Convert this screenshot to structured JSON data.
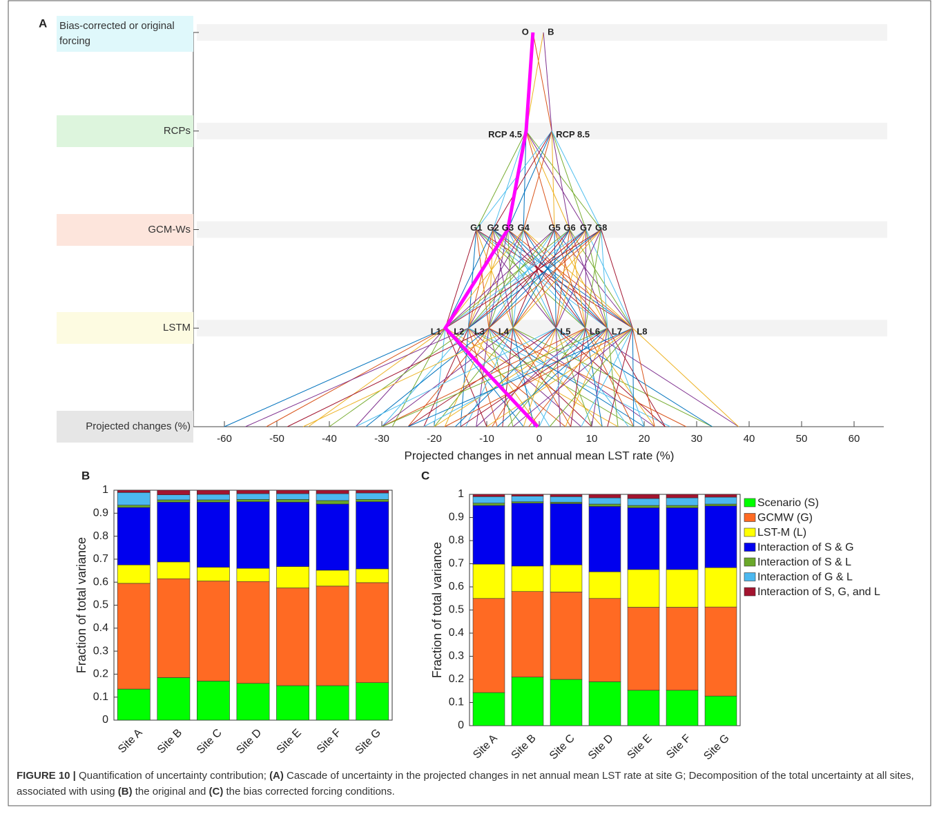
{
  "chart_data": [
    {
      "type": "cascade",
      "panel_label": "A",
      "xlabel": "Projected changes in net annual mean LST rate (%)",
      "xlim": [
        -66,
        66
      ],
      "xticks": [
        -60,
        -50,
        -40,
        -30,
        -20,
        -10,
        0,
        10,
        20,
        30,
        40,
        50,
        60
      ],
      "levels": [
        {
          "label": "Bias-corrected or original forcing",
          "color": "#dff8fb",
          "nodes": [
            {
              "name": "O",
              "value": -1.2
            },
            {
              "name": "B",
              "value": 0.8
            }
          ]
        },
        {
          "label": "RCPs",
          "color": "#ddf5dd",
          "nodes": [
            {
              "name": "RCP 4.5",
              "value": -2.5
            },
            {
              "name": "RCP 8.5",
              "value": 2.4
            }
          ]
        },
        {
          "label": "GCM-Ws",
          "color": "#fde5dc",
          "nodes": [
            {
              "name": "G1",
              "value": -12
            },
            {
              "name": "G2",
              "value": -8.8
            },
            {
              "name": "G3",
              "value": -6
            },
            {
              "name": "G4",
              "value": -3
            },
            {
              "name": "G5",
              "value": 2.9
            },
            {
              "name": "G6",
              "value": 5.8
            },
            {
              "name": "G7",
              "value": 8.9
            },
            {
              "name": "G8",
              "value": 11.8
            }
          ]
        },
        {
          "label": "LSTM",
          "color": "#fdfbe1",
          "nodes": [
            {
              "name": "L1",
              "value": -17.9
            },
            {
              "name": "L2",
              "value": -13.5
            },
            {
              "name": "L3",
              "value": -9.6
            },
            {
              "name": "L4",
              "value": -5
            },
            {
              "name": "L5",
              "value": 3.2
            },
            {
              "name": "L6",
              "value": 8.8
            },
            {
              "name": "L7",
              "value": 13
            },
            {
              "name": "L8",
              "value": 17.8
            }
          ]
        },
        {
          "label": "Projected changes (%)",
          "color": "#e6e6e6"
        }
      ],
      "endpoints": [
        [
          -60,
          -52,
          -44,
          -35,
          -28,
          -20,
          -10,
          -3,
          5,
          15
        ],
        [
          -56,
          -40,
          -30,
          -22,
          -15,
          -8,
          0,
          8,
          18,
          25
        ],
        [
          -48,
          -33,
          -25,
          -18,
          -12,
          -5,
          2,
          10,
          20,
          28
        ],
        [
          -45,
          -30,
          -20,
          -14,
          -7,
          -1,
          6,
          12,
          22,
          33
        ],
        [
          -35,
          -25,
          -16,
          -9,
          -3,
          4,
          10,
          17,
          24,
          33
        ],
        [
          -30,
          -20,
          -12,
          -6,
          0,
          6,
          12,
          18,
          22,
          38
        ],
        [
          -30,
          -22,
          -15,
          -8,
          -2,
          5,
          10,
          15,
          20,
          24
        ],
        [
          -25,
          -18,
          -10,
          -5,
          2,
          8,
          13,
          18,
          22,
          38
        ]
      ],
      "highlight": {
        "color": "#ff00ff",
        "nodes": [
          0,
          0,
          2,
          0
        ],
        "end": -0.3
      },
      "line_colors": [
        "#0072bd",
        "#d95319",
        "#edb120",
        "#7e2f8e",
        "#77ac30",
        "#4dbeee",
        "#a2142f"
      ]
    },
    {
      "type": "stacked_bar",
      "panel_label": "B",
      "ylabel": "Fraction of total variance",
      "categories": [
        "Site A",
        "Site B",
        "Site C",
        "Site D",
        "Site E",
        "Site F",
        "Site G"
      ],
      "ylim": [
        0,
        1
      ],
      "yticks": [
        0,
        0.1,
        0.2,
        0.3,
        0.4,
        0.5,
        0.6,
        0.7,
        0.8,
        0.9,
        1
      ],
      "series": [
        {
          "color": "#00ff00",
          "values": [
            0.135,
            0.185,
            0.17,
            0.16,
            0.15,
            0.15,
            0.163
          ]
        },
        {
          "color": "#ff6a23",
          "values": [
            0.46,
            0.43,
            0.435,
            0.443,
            0.425,
            0.433,
            0.435
          ]
        },
        {
          "color": "#ffff00",
          "values": [
            0.08,
            0.073,
            0.06,
            0.057,
            0.093,
            0.069,
            0.06
          ]
        },
        {
          "color": "#0000ee",
          "values": [
            0.25,
            0.26,
            0.283,
            0.29,
            0.28,
            0.288,
            0.292
          ]
        },
        {
          "color": "#6aa82a",
          "values": [
            0.01,
            0.01,
            0.01,
            0.01,
            0.012,
            0.015,
            0.01
          ]
        },
        {
          "color": "#4cb8ef",
          "values": [
            0.055,
            0.022,
            0.024,
            0.025,
            0.025,
            0.03,
            0.028
          ]
        },
        {
          "color": "#a3142f",
          "values": [
            0.01,
            0.02,
            0.018,
            0.015,
            0.015,
            0.015,
            0.012
          ]
        }
      ]
    },
    {
      "type": "stacked_bar",
      "panel_label": "C",
      "ylabel": "Fraction of total variance",
      "legend": "right",
      "categories": [
        "Site A",
        "Site B",
        "Site C",
        "Site D",
        "Site E",
        "Site F",
        "Site G"
      ],
      "ylim": [
        0,
        1
      ],
      "yticks": [
        0,
        0.1,
        0.2,
        0.3,
        0.4,
        0.5,
        0.6,
        0.7,
        0.8,
        0.9,
        1
      ],
      "series": [
        {
          "name": "Scenario (S)",
          "color": "#00ff00",
          "values": [
            0.143,
            0.21,
            0.2,
            0.19,
            0.153,
            0.153,
            0.128
          ]
        },
        {
          "name": "GCMW (G)",
          "color": "#ff6a23",
          "values": [
            0.407,
            0.37,
            0.378,
            0.36,
            0.359,
            0.359,
            0.385
          ]
        },
        {
          "name": "LST-M (L)",
          "color": "#ffff00",
          "values": [
            0.148,
            0.11,
            0.117,
            0.115,
            0.163,
            0.163,
            0.17
          ]
        },
        {
          "name": "Interaction of S & G",
          "color": "#0000ee",
          "values": [
            0.254,
            0.272,
            0.265,
            0.283,
            0.267,
            0.267,
            0.267
          ]
        },
        {
          "name": "Interaction of S & L",
          "color": "#6aa82a",
          "values": [
            0.01,
            0.006,
            0.006,
            0.01,
            0.01,
            0.01,
            0.008
          ]
        },
        {
          "name": "Interaction of G & L",
          "color": "#4cb8ef",
          "values": [
            0.028,
            0.024,
            0.024,
            0.027,
            0.03,
            0.033,
            0.03
          ]
        },
        {
          "name": "Interaction of S, G, and L",
          "color": "#a3142f",
          "values": [
            0.01,
            0.008,
            0.01,
            0.015,
            0.018,
            0.015,
            0.012
          ]
        }
      ]
    }
  ],
  "caption": [
    {
      "text": "FIGURE 10 |",
      "bold": true
    },
    {
      "text": " Quantification of uncertainty contribution; ",
      "bold": false
    },
    {
      "text": "(A)",
      "bold": true
    },
    {
      "text": " Cascade of uncertainty in the projected changes in net annual mean LST rate at site G; Decomposition of the total uncertainty at all sites, associated with using ",
      "bold": false
    },
    {
      "text": "(B)",
      "bold": true
    },
    {
      "text": " the original and ",
      "bold": false
    },
    {
      "text": "(C)",
      "bold": true
    },
    {
      "text": " the bias corrected forcing conditions.",
      "bold": false
    }
  ]
}
